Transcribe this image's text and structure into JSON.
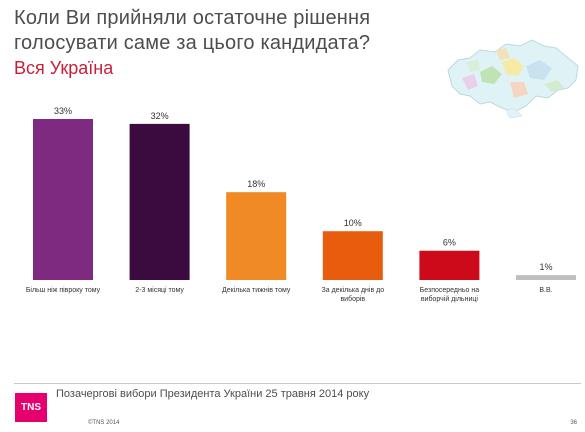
{
  "title": "Коли Ви прийняли остаточне рішення голосувати саме за цього кандидата?",
  "subtitle": "Вся Україна",
  "chart_data": {
    "type": "bar",
    "categories": [
      [
        "Більш ніж півроку тому"
      ],
      [
        "2-3 місяці тому"
      ],
      [
        "Декілька тижнів тому"
      ],
      [
        "За декілька днів до",
        "виборів"
      ],
      [
        "Безпосередньо на",
        "виборчій дільниці"
      ],
      [
        "В.В."
      ]
    ],
    "values": [
      33,
      32,
      18,
      10,
      6,
      1
    ],
    "value_labels": [
      "33%",
      "32%",
      "18%",
      "10%",
      "6%",
      "1%"
    ],
    "colors": [
      "#7e2a80",
      "#3b0a3f",
      "#f08a24",
      "#e85c0d",
      "#cc0a19",
      "#bfbfbf"
    ],
    "ylim": [
      0,
      33
    ],
    "grid": false,
    "legend": "none"
  },
  "footer": {
    "logo_text": "TNS",
    "text": "Позачергові вибори Президента України 25 травня 2014 року",
    "copyright": "©TNS 2014",
    "page": "36"
  },
  "icons": {
    "map": "ukraine-map-icon"
  }
}
